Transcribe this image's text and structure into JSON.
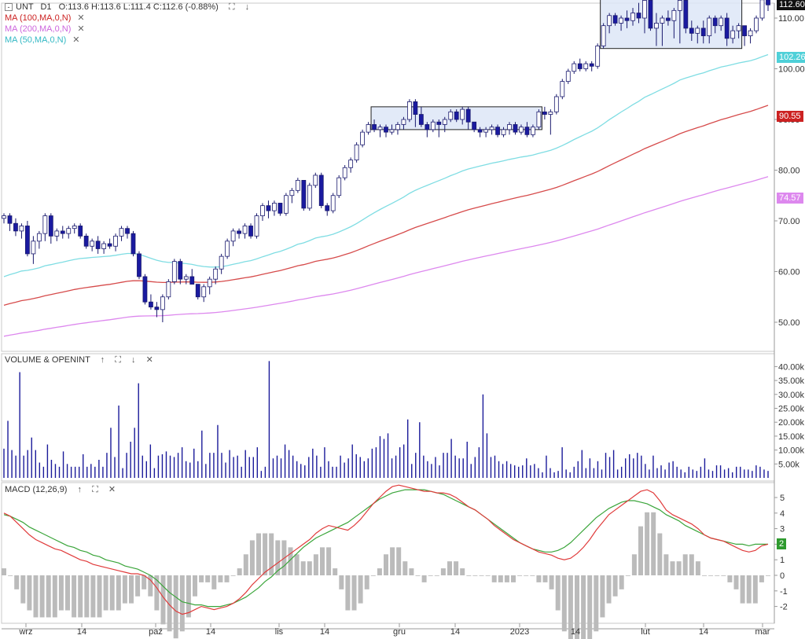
{
  "header": {
    "symbol": "UNT",
    "timeframe": "D1",
    "ohlc": "O:113.6  H:113.6  L:111.4  C:112.6  (-0.88%)"
  },
  "indicators": {
    "ma100": "MA (100,MA,0,N)",
    "ma200": "MA (200,MA,0,N)",
    "ma50": "MA (50,MA,0,N)"
  },
  "volume_panel": {
    "title": "VOLUME & OPENINT"
  },
  "macd_panel": {
    "title": "MACD (12,26,9)"
  },
  "colors": {
    "bull_fill": "#ffffff",
    "bear_fill": "#1a1aa0",
    "candle_border": "#1a1a6e",
    "ma50": "#7fdde3",
    "ma100": "#d64b4b",
    "ma200": "#dd88ee",
    "macd_line": "#e03b3b",
    "signal_line": "#3aa53a",
    "histogram": "#bbbbbb",
    "volume_bar": "#1a1a9a",
    "highlight_box": "#dde6f7"
  },
  "price_badges": [
    {
      "value": "112.60",
      "color": "#111111"
    },
    {
      "value": "102.26",
      "color": "#4fd0d8"
    },
    {
      "value": "90.55",
      "color": "#cc2222"
    },
    {
      "value": "74.57",
      "color": "#dd88ee"
    }
  ],
  "macd_badge": {
    "value": "2",
    "color": "#2e9a2e"
  },
  "chart_data": {
    "type": "candlestick",
    "x_ticks": [
      "wrz",
      "14",
      "paź",
      "14",
      "lis",
      "14",
      "gru",
      "14",
      "2023",
      "14",
      "lut",
      "14",
      "mar"
    ],
    "price_axis": {
      "ticks": [
        "50.00",
        "60.00",
        "70.00",
        "80.00",
        "90.00",
        "100.00",
        "110.00"
      ]
    },
    "volume_axis": {
      "ticks": [
        "5.00k",
        "10.00k",
        "15.00k",
        "20.00k",
        "25.00k",
        "30.00k",
        "35.00k",
        "40.00k"
      ]
    },
    "macd_axis": {
      "ticks": [
        "5",
        "4",
        "3",
        "2",
        "1",
        "0",
        "-1",
        "-2"
      ]
    },
    "candles": [
      [
        70.5,
        71.5,
        69.5,
        71.0
      ],
      [
        71,
        71.5,
        68,
        69.5
      ],
      [
        69.5,
        70.5,
        67,
        68.0
      ],
      [
        68,
        69.5,
        66.5,
        69.0
      ],
      [
        69,
        70,
        63,
        63.5
      ],
      [
        63.5,
        67,
        61.5,
        66.0
      ],
      [
        66,
        68,
        64.5,
        67.5
      ],
      [
        67.5,
        71.5,
        66,
        71.0
      ],
      [
        71,
        71.5,
        65.5,
        67.0
      ],
      [
        67,
        68.5,
        66,
        68.0
      ],
      [
        68,
        69,
        66.5,
        67.5
      ],
      [
        67.5,
        69,
        66.5,
        68.5
      ],
      [
        68.5,
        69.5,
        67.5,
        69.0
      ],
      [
        69,
        69.5,
        66.5,
        67.0
      ],
      [
        67,
        67.5,
        64.5,
        65.0
      ],
      [
        65,
        66.5,
        64,
        66.0
      ],
      [
        66,
        67,
        63.5,
        64.5
      ],
      [
        64.5,
        66,
        63.5,
        65.5
      ],
      [
        65.5,
        66.5,
        64.5,
        65.0
      ],
      [
        65,
        67.5,
        64,
        67.0
      ],
      [
        67,
        69,
        66,
        68.5
      ],
      [
        68.5,
        69,
        66.5,
        67.5
      ],
      [
        67.5,
        68,
        63,
        63.5
      ],
      [
        63.5,
        64,
        58.5,
        59.0
      ],
      [
        59,
        59.5,
        53.5,
        54.0
      ],
      [
        54,
        55.5,
        52.5,
        53.0
      ],
      [
        53,
        54,
        51,
        52.5
      ],
      [
        52.5,
        55.5,
        50,
        55.0
      ],
      [
        55,
        58.5,
        54.5,
        58.0
      ],
      [
        58,
        62.5,
        57.5,
        62.0
      ],
      [
        62,
        62.5,
        57.5,
        58.5
      ],
      [
        58.5,
        59.5,
        57.5,
        59.0
      ],
      [
        59,
        60.5,
        57.5,
        57.5
      ],
      [
        57.5,
        57.5,
        54.5,
        55.0
      ],
      [
        55,
        57.5,
        54,
        57.0
      ],
      [
        57,
        59,
        55.5,
        58.5
      ],
      [
        58.5,
        61,
        57.5,
        60.5
      ],
      [
        60.5,
        63.5,
        59.5,
        63.0
      ],
      [
        63,
        66.5,
        62.5,
        66.0
      ],
      [
        66,
        68.5,
        65,
        68.0
      ],
      [
        68,
        68.5,
        66.5,
        67.5
      ],
      [
        67.5,
        69.5,
        66.5,
        69.0
      ],
      [
        69,
        69.5,
        66.5,
        67.0
      ],
      [
        67,
        71.5,
        66.5,
        71.0
      ],
      [
        71,
        73.5,
        70,
        73.0
      ],
      [
        73,
        74,
        70.5,
        72.0
      ],
      [
        72,
        74,
        71,
        73.5
      ],
      [
        73.5,
        73.5,
        71,
        71.5
      ],
      [
        71.5,
        75.5,
        71,
        75.0
      ],
      [
        75,
        76.5,
        73.5,
        76.0
      ],
      [
        76,
        78.5,
        75.5,
        78.0
      ],
      [
        78,
        78,
        72,
        72.5
      ],
      [
        72.5,
        77.5,
        72,
        77.0
      ],
      [
        77,
        79.5,
        76.5,
        79.0
      ],
      [
        79,
        79.5,
        72.5,
        73.0
      ],
      [
        73,
        73.5,
        71,
        72.0
      ],
      [
        72,
        75.5,
        71.5,
        75.0
      ],
      [
        75,
        79,
        74.5,
        78.5
      ],
      [
        78.5,
        81,
        78,
        80.5
      ],
      [
        80.5,
        82.5,
        79.5,
        82.0
      ],
      [
        82,
        85.5,
        81.5,
        85.0
      ],
      [
        85,
        88,
        84.5,
        87.5
      ],
      [
        87.5,
        89.5,
        87,
        89.0
      ],
      [
        89,
        90,
        87.5,
        88.0
      ],
      [
        88,
        89,
        86.5,
        88.5
      ],
      [
        88.5,
        89,
        86.5,
        87.5
      ],
      [
        87.5,
        89,
        87,
        88.0
      ],
      [
        88,
        89.5,
        87,
        89.0
      ],
      [
        89,
        90.5,
        88,
        90.0
      ],
      [
        90,
        94,
        89.5,
        93.5
      ],
      [
        93.5,
        94,
        88.5,
        91.0
      ],
      [
        91,
        92.5,
        88.5,
        89.0
      ],
      [
        89,
        89.5,
        86.5,
        88.0
      ],
      [
        88,
        90,
        87.5,
        89.5
      ],
      [
        89.5,
        90,
        86.5,
        89.0
      ],
      [
        89,
        90.5,
        87.5,
        90.0
      ],
      [
        90,
        92,
        89.5,
        91.5
      ],
      [
        91.5,
        92,
        89.5,
        90.0
      ],
      [
        90,
        92.5,
        89,
        92.0
      ],
      [
        92,
        92.5,
        88,
        89.5
      ],
      [
        89.5,
        89.5,
        87.5,
        88.0
      ],
      [
        88,
        88.5,
        86.5,
        87.5
      ],
      [
        87.5,
        88.5,
        86.5,
        88.0
      ],
      [
        88,
        89,
        87,
        88.5
      ],
      [
        88.5,
        89,
        86.5,
        87.0
      ],
      [
        87,
        88.5,
        86.5,
        88.0
      ],
      [
        88,
        89.5,
        87,
        89.0
      ],
      [
        89,
        89.5,
        87,
        87.5
      ],
      [
        87.5,
        89,
        87,
        88.5
      ],
      [
        88.5,
        89.5,
        86.5,
        87.0
      ],
      [
        87,
        89,
        86.5,
        88.5
      ],
      [
        88.5,
        92,
        88,
        91.5
      ],
      [
        91.5,
        92.5,
        90,
        91.0
      ],
      [
        91,
        92,
        87,
        91.5
      ],
      [
        91.5,
        95,
        91,
        94.5
      ],
      [
        94.5,
        98,
        94,
        97.5
      ],
      [
        97.5,
        100,
        97,
        99.5
      ],
      [
        99.5,
        101.5,
        99,
        101.0
      ],
      [
        101,
        102,
        99.5,
        100.0
      ],
      [
        100,
        101.5,
        99.5,
        101.0
      ],
      [
        101,
        101.5,
        99.5,
        100.5
      ],
      [
        100.5,
        105,
        100,
        104.5
      ],
      [
        104.5,
        109,
        104,
        108.5
      ],
      [
        108.5,
        111,
        107,
        110.5
      ],
      [
        110.5,
        111,
        108.5,
        109.0
      ],
      [
        109,
        110.5,
        107.5,
        110.0
      ],
      [
        110,
        111.5,
        108,
        109.5
      ],
      [
        109.5,
        112,
        108.5,
        111.0
      ],
      [
        111,
        113,
        109,
        110.0
      ],
      [
        110,
        114,
        107,
        113.5
      ],
      [
        113.5,
        113.5,
        107.5,
        108.0
      ],
      [
        108,
        111,
        104.5,
        109.0
      ],
      [
        109,
        110.5,
        104.5,
        110.0
      ],
      [
        110,
        111.5,
        108.5,
        109.5
      ],
      [
        109.5,
        112,
        106,
        111.5
      ],
      [
        111.5,
        114,
        105,
        113.5
      ],
      [
        113.5,
        114,
        107,
        108.0
      ],
      [
        108,
        109.5,
        105.5,
        107.0
      ],
      [
        107,
        108.5,
        105,
        108.0
      ],
      [
        108,
        109.5,
        105,
        106.5
      ],
      [
        106.5,
        110.5,
        105,
        110.0
      ],
      [
        110,
        110.5,
        107,
        108.5
      ],
      [
        108.5,
        110.5,
        107.5,
        110.0
      ],
      [
        110,
        111,
        104.5,
        106.0
      ],
      [
        106,
        108.5,
        105,
        107.5
      ],
      [
        107.5,
        109,
        106,
        108.5
      ],
      [
        108.5,
        108.5,
        104.5,
        106.5
      ],
      [
        106.5,
        108,
        105,
        107.5
      ],
      [
        107.5,
        110.5,
        107,
        110.0
      ],
      [
        110,
        113.6,
        109.5,
        113.6
      ],
      [
        113.6,
        113.6,
        111.4,
        112.6
      ]
    ],
    "volume": [
      10.5,
      20.5,
      10,
      8,
      38,
      8,
      10,
      14.5,
      10,
      5.5,
      4,
      12,
      6.5,
      5,
      4,
      9.5,
      5,
      4,
      4,
      4,
      8.5,
      4,
      5,
      4,
      6.5,
      4,
      9,
      18,
      7.5,
      26,
      3.5,
      9,
      13,
      18,
      34,
      8,
      6,
      12,
      3.5,
      8,
      8.5,
      9.5,
      8,
      7.5,
      9,
      11,
      6,
      5.5,
      10.5,
      6,
      17,
      5,
      9,
      9,
      19,
      9,
      5.5,
      10,
      7.5,
      8,
      4,
      10,
      7.5,
      7.5,
      11,
      2.5,
      4,
      42,
      7,
      8,
      7,
      12,
      10,
      8,
      6,
      5,
      4.5,
      7.5,
      10.5,
      8,
      4,
      11,
      6,
      4,
      4,
      8,
      5.5,
      7,
      12,
      8.5,
      7.5,
      6,
      7,
      10.5,
      11,
      15,
      14,
      16,
      7,
      8,
      11,
      12,
      21,
      5,
      9,
      20,
      8,
      6,
      5,
      7.5,
      4.5,
      9,
      9,
      14,
      8,
      7,
      7,
      13,
      5,
      7.5,
      11,
      30,
      16,
      7.5,
      8,
      6,
      5,
      6,
      5,
      4.5,
      4,
      4.5,
      7,
      4.5,
      5,
      3.5,
      2,
      8,
      3.5,
      2,
      2.5,
      11,
      3,
      2,
      4,
      6,
      10,
      3.5,
      7,
      3.5,
      6,
      3,
      9,
      7.5,
      10,
      3,
      4,
      7,
      8.5,
      7,
      9,
      8,
      5,
      3,
      8,
      3.5,
      4.5,
      3,
      5.5,
      6,
      4,
      3,
      2,
      4,
      3,
      2.5,
      4,
      7,
      3,
      2.5,
      4.5,
      4.5,
      3,
      3.5,
      2,
      4,
      4,
      3,
      3,
      2.5,
      4.5,
      4,
      3,
      2.5
    ],
    "macd": [
      4.0,
      3.8,
      3.4,
      3.0,
      2.6,
      2.3,
      2.1,
      1.9,
      1.7,
      1.6,
      1.4,
      1.2,
      1.0,
      0.9,
      0.7,
      0.6,
      0.5,
      0.4,
      0.3,
      0.2,
      0.1,
      0.1,
      0.0,
      -0.3,
      -0.8,
      -1.4,
      -1.9,
      -2.3,
      -2.5,
      -2.4,
      -2.2,
      -2.0,
      -2.1,
      -2.2,
      -2.1,
      -2.0,
      -1.8,
      -1.5,
      -1.1,
      -0.6,
      -0.2,
      0.2,
      0.5,
      0.8,
      1.1,
      1.4,
      1.7,
      2.0,
      2.3,
      2.7,
      3.0,
      3.2,
      3.1,
      3.0,
      2.9,
      3.2,
      3.6,
      4.1,
      4.6,
      5.0,
      5.4,
      5.7,
      5.8,
      5.7,
      5.6,
      5.5,
      5.4,
      5.4,
      5.3,
      5.3,
      5.2,
      5.0,
      4.7,
      4.4,
      4.2,
      3.9,
      3.6,
      3.2,
      2.9,
      2.6,
      2.3,
      2.1,
      1.9,
      1.7,
      1.5,
      1.4,
      1.3,
      1.1,
      1.0,
      1.1,
      1.4,
      1.8,
      2.3,
      2.9,
      3.4,
      3.9,
      4.2,
      4.5,
      4.8,
      5.1,
      5.4,
      5.5,
      5.3,
      4.8,
      4.2,
      3.9,
      3.7,
      3.5,
      3.3,
      3.0,
      2.6,
      2.4,
      2.3,
      2.2,
      2.0,
      1.8,
      1.6,
      1.5,
      1.6,
      1.9,
      2.0
    ],
    "signal": [
      3.9,
      3.8,
      3.6,
      3.4,
      3.1,
      2.9,
      2.7,
      2.5,
      2.3,
      2.1,
      1.9,
      1.8,
      1.6,
      1.5,
      1.3,
      1.2,
      1.0,
      0.9,
      0.8,
      0.6,
      0.5,
      0.4,
      0.2,
      0.0,
      -0.3,
      -0.7,
      -1.1,
      -1.4,
      -1.7,
      -1.8,
      -1.9,
      -1.9,
      -2.0,
      -2.0,
      -2.0,
      -1.9,
      -1.8,
      -1.6,
      -1.4,
      -1.1,
      -0.8,
      -0.4,
      -0.1,
      0.3,
      0.6,
      1.0,
      1.4,
      1.8,
      2.1,
      2.4,
      2.6,
      2.8,
      3.0,
      3.2,
      3.4,
      3.7,
      4.0,
      4.3,
      4.6,
      4.9,
      5.1,
      5.3,
      5.4,
      5.5,
      5.5,
      5.5,
      5.5,
      5.4,
      5.3,
      5.2,
      5.0,
      4.8,
      4.6,
      4.4,
      4.2,
      3.9,
      3.6,
      3.3,
      3.0,
      2.7,
      2.4,
      2.1,
      1.9,
      1.7,
      1.6,
      1.5,
      1.5,
      1.6,
      1.8,
      2.1,
      2.5,
      2.9,
      3.3,
      3.7,
      4.0,
      4.3,
      4.5,
      4.7,
      4.8,
      4.8,
      4.7,
      4.6,
      4.4,
      4.2,
      3.9,
      3.7,
      3.5,
      3.2,
      3.0,
      2.8,
      2.6,
      2.4,
      2.3,
      2.2,
      2.1,
      2.0,
      2.0,
      1.9,
      2.0,
      2.0,
      2.0
    ],
    "highlight_boxes": [
      {
        "from_index": 63,
        "to_index": 91,
        "low": 88.0,
        "high": 92.5
      },
      {
        "from_index": 102,
        "to_index": 125,
        "low": 104.0,
        "high": 114.2
      }
    ]
  }
}
